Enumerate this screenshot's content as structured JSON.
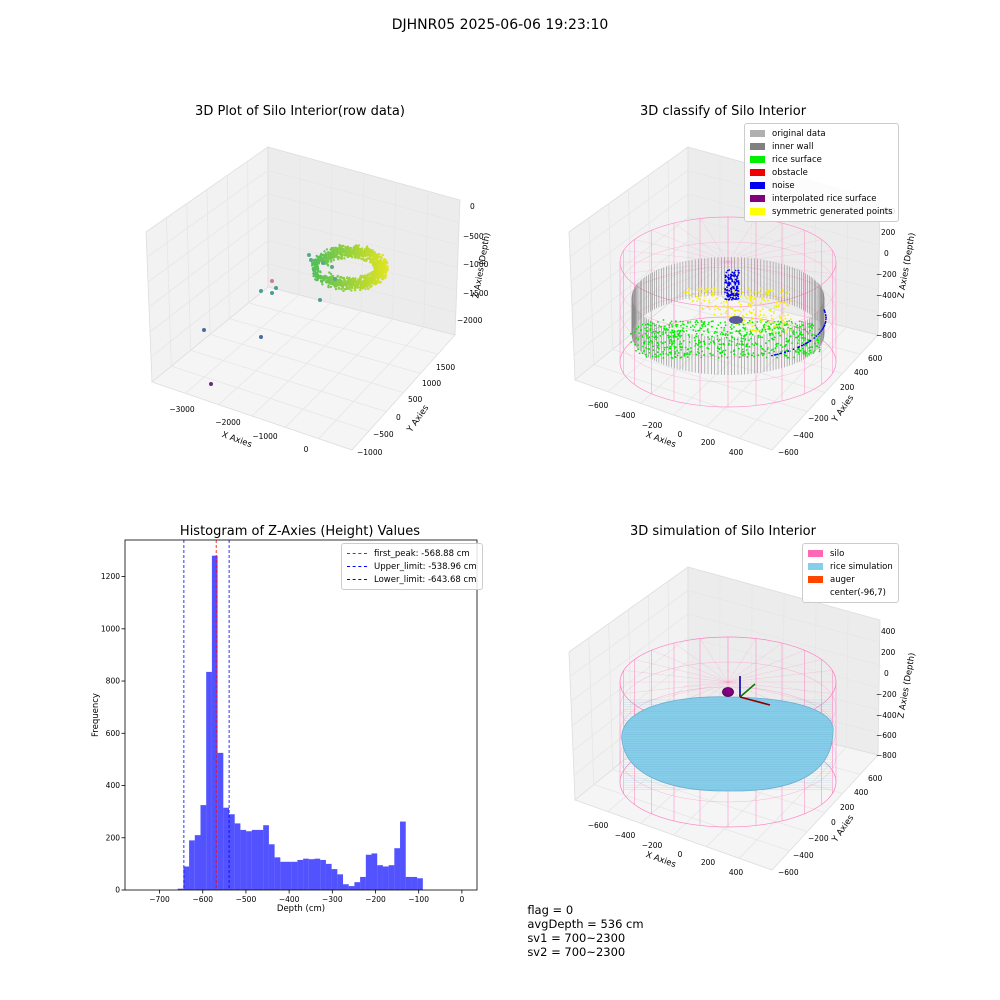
{
  "figure": {
    "suptitle": "DJHNR05 2025-06-06 19:23:10"
  },
  "status": {
    "flag": "flag = 0",
    "avg": "avgDepth = 536 cm",
    "sv1": "sv1 = 700~2300",
    "sv2": "sv2 = 700~2300"
  },
  "chart_data": [
    {
      "type": "scatter",
      "title": "3D Plot of Silo Interior(row data)",
      "xlabel": "X Axies",
      "ylabel": "Y Axies",
      "zlabel": "Z Axies (Depth)",
      "x_ticks": [
        "−3000",
        "−2000",
        "−1000",
        "0"
      ],
      "y_ticks": [
        "−1000",
        "−500",
        "0",
        "500",
        "1000",
        "1500"
      ],
      "z_ticks": [
        "−2000",
        "−1500",
        "−1000",
        "−500",
        "0"
      ],
      "xlim": [
        -3500,
        500
      ],
      "ylim": [
        -1000,
        1800
      ],
      "zlim": [
        -2200,
        0
      ]
    },
    {
      "type": "scatter",
      "title": "3D classify of Silo Interior",
      "xlabel": "X Axies",
      "ylabel": "Y Axies",
      "zlabel": "Z Axies (Depth)",
      "x_ticks": [
        "−600",
        "−400",
        "−200",
        "0",
        "200",
        "400"
      ],
      "y_ticks": [
        "−600",
        "−400",
        "−200",
        "0",
        "200",
        "400",
        "600"
      ],
      "z_ticks": [
        "−800",
        "−600",
        "−400",
        "−200",
        "0",
        "200",
        "400"
      ],
      "legend": [
        {
          "label": "original data",
          "color": "#b0b0b0"
        },
        {
          "label": "inner wall",
          "color": "#808080"
        },
        {
          "label": "rice surface",
          "color": "#00ee00"
        },
        {
          "label": "obstacle",
          "color": "#ee0000"
        },
        {
          "label": "noise",
          "color": "#0000ee"
        },
        {
          "label": "interpolated rice surface",
          "color": "#800080"
        },
        {
          "label": "symmetric generated points",
          "color": "#ffff00"
        }
      ]
    },
    {
      "type": "bar",
      "title": "Histogram of Z-Axies (Height) Values",
      "xlabel": "Depth (cm)",
      "ylabel": "Frequency",
      "xlim": [
        -780,
        35
      ],
      "ylim": [
        0,
        1340
      ],
      "x_ticks": [
        -700,
        -600,
        -500,
        -400,
        -300,
        -200,
        -100,
        0
      ],
      "x_tick_labels": [
        "−700",
        "−600",
        "−500",
        "−400",
        "−300",
        "−200",
        "−100",
        "0"
      ],
      "y_ticks": [
        0,
        200,
        400,
        600,
        800,
        1000,
        1200
      ],
      "bin_start": -658,
      "bin_width": 13.2,
      "values": [
        5,
        90,
        190,
        210,
        325,
        835,
        1280,
        525,
        315,
        290,
        255,
        230,
        225,
        230,
        230,
        248,
        175,
        125,
        108,
        108,
        108,
        115,
        120,
        118,
        120,
        115,
        100,
        80,
        60,
        22,
        15,
        30,
        50,
        135,
        140,
        95,
        90,
        95,
        160,
        262,
        50,
        50,
        45
      ],
      "bar_color": "#0000ff",
      "vlines": [
        {
          "label": "first_peak: -568.88 cm",
          "x": -568.88,
          "color": "#ff0000"
        },
        {
          "label": "Upper_limit: -538.96 cm",
          "x": -538.96,
          "color": "#0000ff"
        },
        {
          "label": "Lower_limit: -643.68 cm",
          "x": -643.68,
          "color": "#0000ff"
        }
      ]
    },
    {
      "type": "scatter",
      "title": "3D simulation of Silo Interior",
      "xlabel": "X Axies",
      "ylabel": "Y Axies",
      "zlabel": "Z Axies (Depth)",
      "x_ticks": [
        "−600",
        "−400",
        "−200",
        "0",
        "200",
        "400"
      ],
      "y_ticks": [
        "−600",
        "−400",
        "−200",
        "0",
        "200",
        "400",
        "600"
      ],
      "z_ticks": [
        "−800",
        "−600",
        "−400",
        "−200",
        "0",
        "200",
        "400"
      ],
      "legend": [
        {
          "label": "silo",
          "color": "#ff69b4"
        },
        {
          "label": "rice simulation",
          "color": "#87ceeb"
        },
        {
          "label": "auger",
          "color": "#ff4500"
        },
        {
          "label": "center(-96,7)",
          "color": "#ffffff"
        }
      ]
    }
  ]
}
